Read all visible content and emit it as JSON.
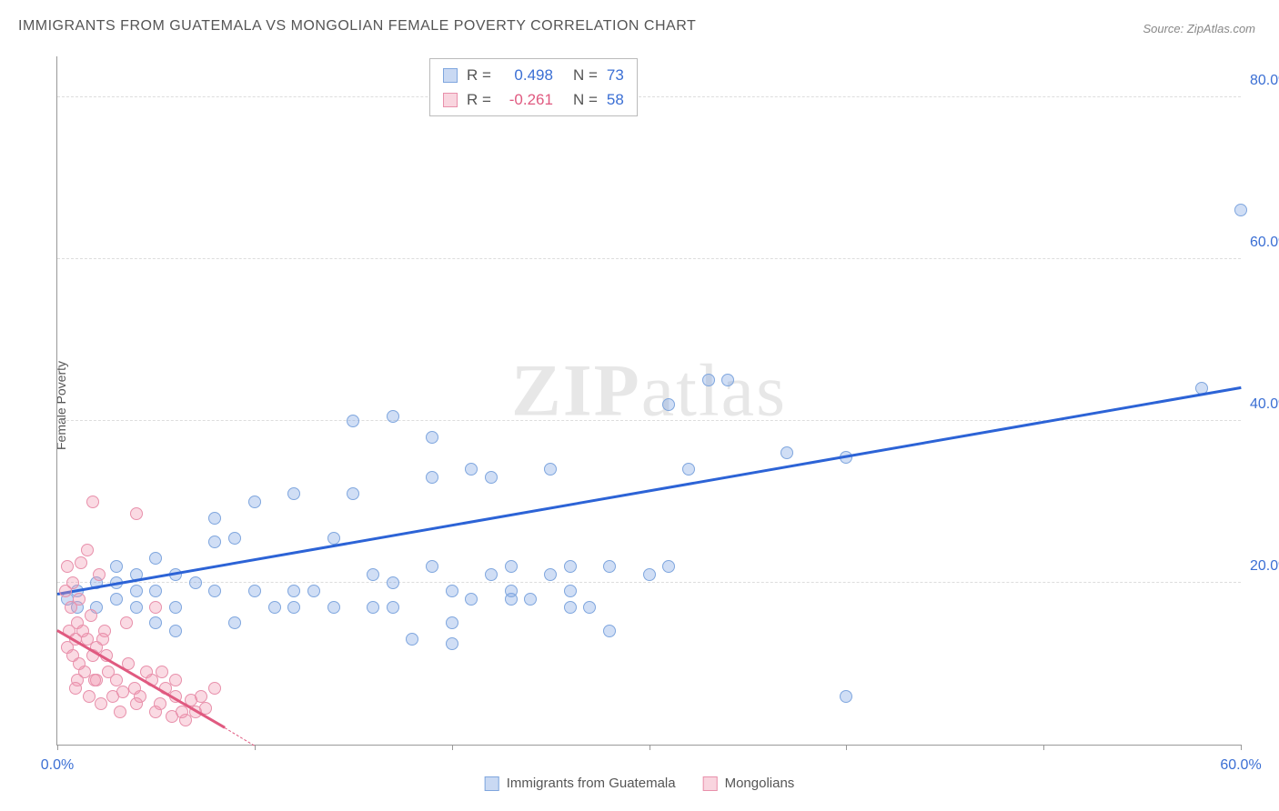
{
  "title": "IMMIGRANTS FROM GUATEMALA VS MONGOLIAN FEMALE POVERTY CORRELATION CHART",
  "source": "Source: ZipAtlas.com",
  "y_axis_label": "Female Poverty",
  "watermark": {
    "zip": "ZIP",
    "atlas": "atlas"
  },
  "chart": {
    "type": "scatter",
    "xlim": [
      0,
      60
    ],
    "ylim": [
      0,
      85
    ],
    "y_ticks": [
      20,
      40,
      60,
      80
    ],
    "y_tick_labels": [
      "20.0%",
      "40.0%",
      "60.0%",
      "80.0%"
    ],
    "y_tick_color": "#3b6fd4",
    "x_ticks": [
      0,
      10,
      20,
      30,
      40,
      50,
      60
    ],
    "x_tick_labels": [
      "0.0%",
      "",
      "",
      "",
      "",
      "",
      "60.0%"
    ],
    "x_tick_color": "#3b6fd4",
    "grid_color": "#dddddd",
    "background_color": "#ffffff",
    "axis_color": "#999999",
    "marker_radius": 7,
    "series": [
      {
        "name": "Immigrants from Guatemala",
        "fill": "rgba(120,160,225,0.35)",
        "stroke": "#7fa6de",
        "trend_color": "#2c63d6",
        "trend": {
          "x1": 0,
          "y1": 18.5,
          "x2": 60,
          "y2": 44
        },
        "points": [
          [
            60,
            66
          ],
          [
            37,
            36
          ],
          [
            58,
            44
          ],
          [
            33,
            45
          ],
          [
            34,
            45
          ],
          [
            15,
            40
          ],
          [
            31,
            42
          ],
          [
            17,
            40.5
          ],
          [
            19,
            38
          ],
          [
            21,
            34
          ],
          [
            22,
            33
          ],
          [
            19,
            33
          ],
          [
            25,
            34
          ],
          [
            40,
            35.5
          ],
          [
            12,
            31
          ],
          [
            10,
            30
          ],
          [
            15,
            31
          ],
          [
            23,
            22
          ],
          [
            23,
            18
          ],
          [
            26,
            22
          ],
          [
            26,
            17
          ],
          [
            28,
            22
          ],
          [
            31,
            22
          ],
          [
            30,
            21
          ],
          [
            32,
            34
          ],
          [
            9,
            25.5
          ],
          [
            8,
            25
          ],
          [
            14,
            25.5
          ],
          [
            5,
            23
          ],
          [
            6,
            21
          ],
          [
            8,
            28
          ],
          [
            16,
            21
          ],
          [
            17,
            20
          ],
          [
            19,
            22
          ],
          [
            20,
            19
          ],
          [
            20,
            12.5
          ],
          [
            21,
            18
          ],
          [
            22,
            21
          ],
          [
            23,
            19
          ],
          [
            24,
            18
          ],
          [
            25,
            21
          ],
          [
            26,
            19
          ],
          [
            27,
            17
          ],
          [
            28,
            14
          ],
          [
            4,
            19
          ],
          [
            3,
            20
          ],
          [
            3,
            18
          ],
          [
            4,
            17
          ],
          [
            5,
            19
          ],
          [
            6,
            17
          ],
          [
            7,
            20
          ],
          [
            8,
            19
          ],
          [
            2,
            20
          ],
          [
            2,
            17
          ],
          [
            9,
            15
          ],
          [
            10,
            19
          ],
          [
            11,
            17
          ],
          [
            12,
            19
          ],
          [
            12,
            17
          ],
          [
            13,
            19
          ],
          [
            14,
            17
          ],
          [
            16,
            17
          ],
          [
            17,
            17
          ],
          [
            18,
            13
          ],
          [
            20,
            15
          ],
          [
            3,
            22
          ],
          [
            4,
            21
          ],
          [
            0.5,
            18
          ],
          [
            1,
            19
          ],
          [
            1,
            17
          ],
          [
            5,
            15
          ],
          [
            6,
            14
          ],
          [
            40,
            6
          ]
        ]
      },
      {
        "name": "Mongolians",
        "fill": "rgba(240,150,175,0.35)",
        "stroke": "#e890ab",
        "trend_color": "#e05a80",
        "trend": {
          "x1": 0,
          "y1": 14,
          "x2": 8.5,
          "y2": 2
        },
        "trend_dash": {
          "x1": 8.5,
          "y1": 2,
          "x2": 10,
          "y2": -0.2
        },
        "points": [
          [
            1.8,
            30
          ],
          [
            4,
            28.5
          ],
          [
            1.5,
            24
          ],
          [
            0.5,
            22
          ],
          [
            0.8,
            20
          ],
          [
            1.2,
            22.5
          ],
          [
            1.0,
            15
          ],
          [
            2.4,
            14
          ],
          [
            0.4,
            19
          ],
          [
            1.7,
            16
          ],
          [
            0.7,
            17
          ],
          [
            1.1,
            18
          ],
          [
            2.1,
            21
          ],
          [
            0.6,
            14
          ],
          [
            1.5,
            13
          ],
          [
            2.0,
            12
          ],
          [
            0.9,
            13
          ],
          [
            1.3,
            14
          ],
          [
            1.8,
            11
          ],
          [
            2.3,
            13
          ],
          [
            5,
            17
          ],
          [
            3.5,
            15
          ],
          [
            4.2,
            6
          ],
          [
            5.5,
            7
          ],
          [
            6,
            8
          ],
          [
            7,
            4
          ],
          [
            7.5,
            4.5
          ],
          [
            8,
            7
          ],
          [
            3,
            8
          ],
          [
            4,
            5
          ],
          [
            5,
            4
          ],
          [
            6.5,
            3
          ],
          [
            6,
            6
          ],
          [
            3.2,
            4
          ],
          [
            3.6,
            10
          ],
          [
            4.5,
            9
          ],
          [
            5.2,
            5
          ],
          [
            5.8,
            3.5
          ],
          [
            2.6,
            9
          ],
          [
            2,
            8
          ],
          [
            2.8,
            6
          ],
          [
            1.4,
            9
          ],
          [
            1.9,
            8
          ],
          [
            1.1,
            10
          ],
          [
            0.5,
            12
          ],
          [
            0.8,
            11
          ],
          [
            1.0,
            8
          ],
          [
            3.3,
            6.5
          ],
          [
            6.8,
            5.5
          ],
          [
            7.3,
            6
          ],
          [
            4.8,
            8
          ],
          [
            5.3,
            9
          ],
          [
            6.3,
            4
          ],
          [
            2.2,
            5
          ],
          [
            2.5,
            11
          ],
          [
            3.9,
            7
          ],
          [
            1.6,
            6
          ],
          [
            0.9,
            7
          ]
        ]
      }
    ]
  },
  "stats": {
    "rows": [
      {
        "swatch_fill": "rgba(120,160,225,0.4)",
        "swatch_border": "#7fa6de",
        "r_label": "R =",
        "r_value": "0.498",
        "r_color": "#3b6fd4",
        "n_label": "N =",
        "n_value": "73",
        "n_color": "#3b6fd4"
      },
      {
        "swatch_fill": "rgba(240,150,175,0.4)",
        "swatch_border": "#e890ab",
        "r_label": "R =",
        "r_value": "-0.261",
        "r_color": "#e05a80",
        "n_label": "N =",
        "n_value": "58",
        "n_color": "#3b6fd4"
      }
    ]
  },
  "legend": {
    "items": [
      {
        "label": "Immigrants from Guatemala",
        "fill": "rgba(120,160,225,0.4)",
        "border": "#7fa6de"
      },
      {
        "label": "Mongolians",
        "fill": "rgba(240,150,175,0.4)",
        "border": "#e890ab"
      }
    ]
  }
}
